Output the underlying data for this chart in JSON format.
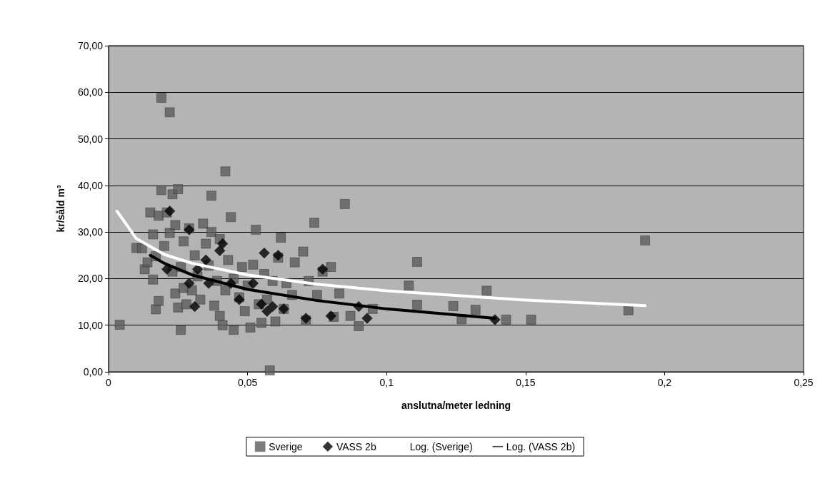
{
  "chart_data": {
    "type": "scatter",
    "xlabel": "anslutna/meter ledning",
    "ylabel": "kr/såld m³",
    "xlim": [
      0,
      0.25
    ],
    "ylim": [
      0,
      70
    ],
    "xticks": [
      {
        "value": 0,
        "label": "0"
      },
      {
        "value": 0.05,
        "label": "0,05"
      },
      {
        "value": 0.1,
        "label": "0,1"
      },
      {
        "value": 0.15,
        "label": "0,15"
      },
      {
        "value": 0.2,
        "label": "0,2"
      },
      {
        "value": 0.25,
        "label": "0,25"
      }
    ],
    "yticks": [
      {
        "value": 0,
        "label": "0,00"
      },
      {
        "value": 10,
        "label": "10,00"
      },
      {
        "value": 20,
        "label": "20,00"
      },
      {
        "value": 30,
        "label": "30,00"
      },
      {
        "value": 40,
        "label": "40,00"
      },
      {
        "value": 50,
        "label": "50,00"
      },
      {
        "value": 60,
        "label": "60,00"
      },
      {
        "value": 70,
        "label": "70,00"
      }
    ],
    "grid": "y",
    "legend": "bottom",
    "series": [
      {
        "name": "Sverige",
        "marker": "square",
        "color": "#5c5c5c",
        "x": [
          0.004,
          0.01,
          0.012,
          0.013,
          0.014,
          0.015,
          0.016,
          0.016,
          0.017,
          0.017,
          0.018,
          0.018,
          0.019,
          0.019,
          0.02,
          0.021,
          0.022,
          0.022,
          0.023,
          0.023,
          0.024,
          0.024,
          0.025,
          0.025,
          0.026,
          0.026,
          0.027,
          0.027,
          0.028,
          0.029,
          0.03,
          0.031,
          0.032,
          0.033,
          0.034,
          0.035,
          0.036,
          0.037,
          0.037,
          0.038,
          0.039,
          0.04,
          0.04,
          0.041,
          0.042,
          0.042,
          0.043,
          0.044,
          0.045,
          0.045,
          0.047,
          0.048,
          0.049,
          0.05,
          0.051,
          0.052,
          0.053,
          0.054,
          0.055,
          0.056,
          0.057,
          0.058,
          0.059,
          0.06,
          0.061,
          0.062,
          0.063,
          0.064,
          0.066,
          0.067,
          0.07,
          0.071,
          0.072,
          0.074,
          0.075,
          0.077,
          0.08,
          0.081,
          0.083,
          0.085,
          0.087,
          0.09,
          0.095,
          0.108,
          0.111,
          0.111,
          0.124,
          0.127,
          0.132,
          0.136,
          0.143,
          0.152,
          0.187,
          0.193
        ],
        "values": [
          10.1,
          26.6,
          26.5,
          22.0,
          23.5,
          34.2,
          19.8,
          29.5,
          24.8,
          13.4,
          15.2,
          33.5,
          58.8,
          39.0,
          27.0,
          34.2,
          55.7,
          29.8,
          21.5,
          38.1,
          16.8,
          31.5,
          13.8,
          39.2,
          9.0,
          22.5,
          18.0,
          28.0,
          14.5,
          30.8,
          17.5,
          25.0,
          20.5,
          15.5,
          31.8,
          27.5,
          22.8,
          37.8,
          30.0,
          14.2,
          19.5,
          12.0,
          28.5,
          10.0,
          43.0,
          17.5,
          24.0,
          33.2,
          9.0,
          20.0,
          16.0,
          22.5,
          13.0,
          18.5,
          9.5,
          23.0,
          30.5,
          14.5,
          10.5,
          21.0,
          15.5,
          0.3,
          19.5,
          10.8,
          24.5,
          28.8,
          13.5,
          19.0,
          16.5,
          23.5,
          25.8,
          11.0,
          19.5,
          32.0,
          16.5,
          21.5,
          22.5,
          11.8,
          16.8,
          36.0,
          12.0,
          9.8,
          13.5,
          18.5,
          23.6,
          14.4,
          14.1,
          11.3,
          13.3,
          17.4,
          11.2,
          11.2,
          13.2,
          28.2
        ]
      },
      {
        "name": "VASS 2b",
        "marker": "diamond",
        "color": "#000000",
        "x": [
          0.021,
          0.022,
          0.029,
          0.029,
          0.031,
          0.032,
          0.035,
          0.036,
          0.04,
          0.041,
          0.044,
          0.047,
          0.052,
          0.055,
          0.056,
          0.057,
          0.059,
          0.061,
          0.063,
          0.071,
          0.077,
          0.08,
          0.09,
          0.093,
          0.139
        ],
        "values": [
          22.0,
          34.5,
          30.5,
          19.0,
          14.0,
          22.0,
          24.0,
          19.0,
          26.0,
          27.5,
          19.0,
          15.5,
          19.0,
          14.5,
          25.5,
          13.0,
          14.0,
          25.0,
          13.5,
          11.5,
          22.0,
          12.0,
          14.0,
          11.5,
          11.2
        ]
      },
      {
        "name": "Log. (Sverige)",
        "type": "line",
        "marker": "none",
        "line_style": "solid",
        "color": "#ffffff",
        "x": [
          0.003,
          0.01,
          0.02,
          0.03,
          0.05,
          0.075,
          0.1,
          0.15,
          0.193
        ],
        "values": [
          34.5,
          28.6,
          25.2,
          23.3,
          20.8,
          18.8,
          17.4,
          15.4,
          14.2
        ]
      },
      {
        "name": "Log. (VASS 2b)",
        "type": "line",
        "marker": "none",
        "line_style": "solid",
        "color": "#000000",
        "x": [
          0.015,
          0.02,
          0.03,
          0.05,
          0.075,
          0.1,
          0.139
        ],
        "values": [
          25.0,
          23.3,
          20.8,
          17.7,
          15.3,
          13.5,
          11.5
        ]
      }
    ]
  }
}
